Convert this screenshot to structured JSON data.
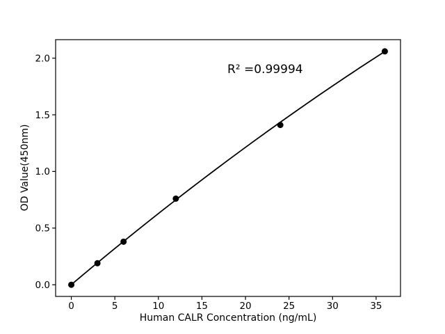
{
  "figure": {
    "background": "#ffffff",
    "foreground": "#000000"
  },
  "chart_data": {
    "type": "scatter",
    "title": "",
    "xlabel": "Human CALR Concentration (ng/mL)",
    "ylabel": "OD Value(450nm)",
    "annotation": "R² =0.99994",
    "x": [
      0,
      3,
      6,
      12,
      24,
      36
    ],
    "y": [
      0.0,
      0.19,
      0.38,
      0.76,
      1.41,
      2.06
    ],
    "xticks": [
      0,
      5,
      10,
      15,
      20,
      25,
      30,
      35
    ],
    "ytick_values": [
      0.0,
      0.5,
      1.0,
      1.5,
      2.0
    ],
    "ytick_labels": [
      "0.0",
      "0.5",
      "1.0",
      "1.5",
      "2.0"
    ],
    "xlim": [
      -1.8,
      37.8
    ],
    "ylim": [
      -0.103,
      2.163
    ],
    "grid": false,
    "legend": "none",
    "marker_color": "#000000",
    "line_color": "#000000",
    "fit_line": {
      "type": "quadratic",
      "a": 0.001,
      "b": 0.0649,
      "c": -0.000215,
      "x_start": 0,
      "x_end": 36
    }
  }
}
